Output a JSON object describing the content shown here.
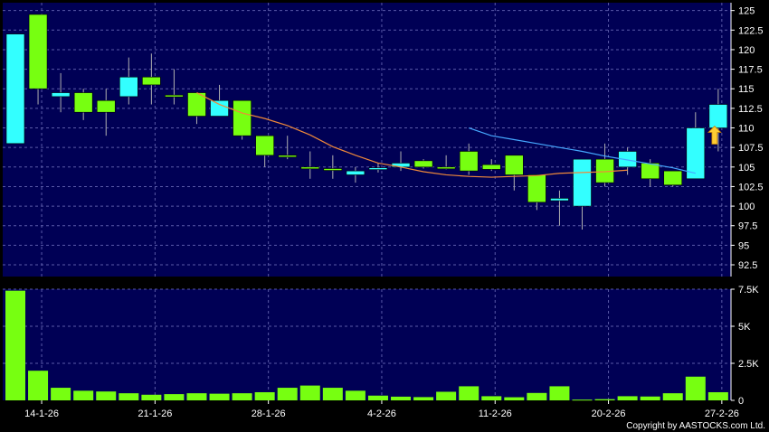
{
  "colors": {
    "background": "#000000",
    "plot_bg": "#000055",
    "grid": "#5a5aa8",
    "up": "#33ffff",
    "down": "#77ff11",
    "volume": "#77ff11",
    "ma_short": "#f0893a",
    "ma_long": "#45a8ff",
    "marker": "#ffcc33",
    "text": "#ffffff",
    "wick": "#b0b0b0"
  },
  "copyright": "Copyright by AASTOCKS.com Ltd.",
  "chart_data": {
    "type": "candlestick",
    "x_tick_labels": [
      "14-1-26",
      "21-1-26",
      "28-1-26",
      "4-2-26",
      "11-2-26",
      "20-2-26",
      "27-2-26"
    ],
    "x_tick_index": [
      1,
      6,
      11,
      16,
      21,
      26,
      31
    ],
    "price_axis": {
      "ylim": [
        91,
        126
      ],
      "tick_labels": [
        "125",
        "122.5",
        "120",
        "117.5",
        "115",
        "112.5",
        "110",
        "107.5",
        "105",
        "102.5",
        "100",
        "97.5",
        "95",
        "92.5"
      ],
      "tick_values": [
        125,
        122.5,
        120,
        117.5,
        115,
        112.5,
        110,
        107.5,
        105,
        102.5,
        100,
        97.5,
        95,
        92.5
      ]
    },
    "volume_axis": {
      "ylim": [
        0,
        7500
      ],
      "tick_labels": [
        "7.5K",
        "5K",
        "2.5K",
        "0"
      ],
      "tick_values": [
        7500,
        5000,
        2500,
        0
      ]
    },
    "candles": [
      {
        "o": 108.0,
        "h": 122.0,
        "l": 108.0,
        "c": 122.0
      },
      {
        "o": 124.5,
        "h": 124.5,
        "l": 113.0,
        "c": 115.0
      },
      {
        "o": 114.0,
        "h": 117.0,
        "l": 112.0,
        "c": 114.5
      },
      {
        "o": 114.5,
        "h": 115.0,
        "l": 111.0,
        "c": 112.0
      },
      {
        "o": 113.5,
        "h": 115.0,
        "l": 109.0,
        "c": 112.0
      },
      {
        "o": 114.0,
        "h": 119.0,
        "l": 113.0,
        "c": 116.5
      },
      {
        "o": 116.5,
        "h": 119.5,
        "l": 113.0,
        "c": 115.5
      },
      {
        "o": 114.2,
        "h": 117.5,
        "l": 113.0,
        "c": 114.0
      },
      {
        "o": 114.5,
        "h": 114.5,
        "l": 110.5,
        "c": 111.5
      },
      {
        "o": 111.5,
        "h": 115.5,
        "l": 111.5,
        "c": 113.5
      },
      {
        "o": 113.5,
        "h": 113.5,
        "l": 108.5,
        "c": 109.0
      },
      {
        "o": 109.0,
        "h": 109.0,
        "l": 105.0,
        "c": 106.5
      },
      {
        "o": 106.5,
        "h": 109.0,
        "l": 106.0,
        "c": 106.3
      },
      {
        "o": 105.0,
        "h": 107.0,
        "l": 103.5,
        "c": 104.8
      },
      {
        "o": 104.8,
        "h": 106.5,
        "l": 103.5,
        "c": 104.7
      },
      {
        "o": 104.0,
        "h": 105.0,
        "l": 103.0,
        "c": 104.5
      },
      {
        "o": 104.8,
        "h": 105.5,
        "l": 104.3,
        "c": 104.9
      },
      {
        "o": 105.0,
        "h": 107.0,
        "l": 104.5,
        "c": 105.5
      },
      {
        "o": 105.8,
        "h": 106.0,
        "l": 104.8,
        "c": 105.0
      },
      {
        "o": 105.0,
        "h": 106.5,
        "l": 104.7,
        "c": 104.8
      },
      {
        "o": 107.0,
        "h": 108.0,
        "l": 104.0,
        "c": 104.5
      },
      {
        "o": 105.3,
        "h": 106.0,
        "l": 104.5,
        "c": 104.7
      },
      {
        "o": 106.5,
        "h": 106.5,
        "l": 102.0,
        "c": 104.0
      },
      {
        "o": 104.0,
        "h": 104.0,
        "l": 99.5,
        "c": 100.5
      },
      {
        "o": 100.7,
        "h": 102.0,
        "l": 97.5,
        "c": 101.0
      },
      {
        "o": 100.0,
        "h": 106.0,
        "l": 97.0,
        "c": 106.0
      },
      {
        "o": 106.0,
        "h": 108.0,
        "l": 102.5,
        "c": 103.0
      },
      {
        "o": 105.0,
        "h": 107.5,
        "l": 104.0,
        "c": 107.0
      },
      {
        "o": 105.5,
        "h": 106.0,
        "l": 102.5,
        "c": 103.5
      },
      {
        "o": 104.5,
        "h": 104.5,
        "l": 102.5,
        "c": 102.7
      },
      {
        "o": 103.5,
        "h": 112.0,
        "l": 103.5,
        "c": 110.0
      },
      {
        "o": 110.0,
        "h": 115.0,
        "l": 107.0,
        "c": 113.0
      }
    ],
    "volume": [
      7400,
      2000,
      850,
      650,
      600,
      480,
      380,
      420,
      480,
      450,
      480,
      550,
      850,
      1000,
      850,
      650,
      320,
      250,
      220,
      580,
      950,
      280,
      210,
      500,
      950,
      50,
      80,
      280,
      260,
      480,
      1600,
      550
    ],
    "ma_short": {
      "start_index": 8,
      "values": [
        114.5,
        113.0,
        111.9,
        111.2,
        110.3,
        109.1,
        107.6,
        106.5,
        105.5,
        105.0,
        104.4,
        104.0,
        103.8,
        103.7,
        103.8,
        103.9,
        104.2,
        104.3,
        104.4,
        104.6
      ]
    },
    "ma_long": {
      "start_index": 20,
      "values": [
        110.0,
        109.0,
        108.5,
        108.0,
        107.5,
        107.0,
        106.4,
        105.9,
        105.4,
        104.9,
        104.2
      ]
    },
    "marker": {
      "index": 31,
      "direction": "up"
    }
  }
}
